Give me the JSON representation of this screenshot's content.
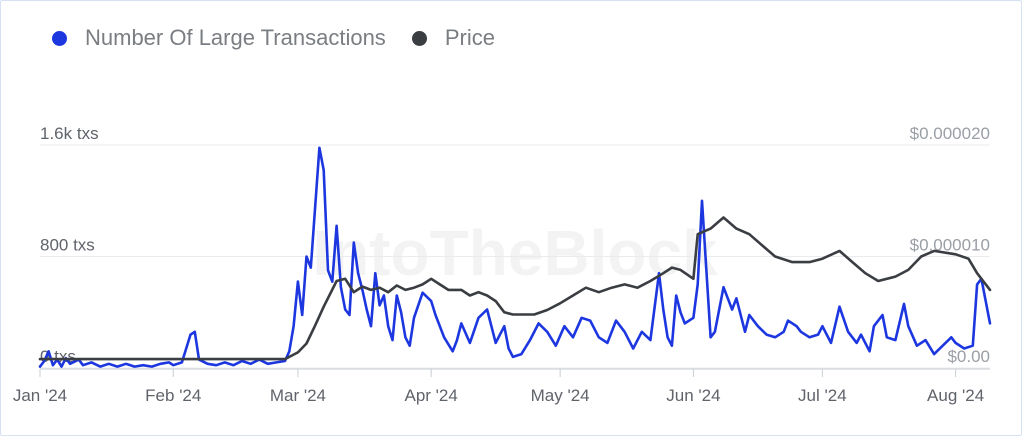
{
  "chart_data": {
    "type": "line",
    "title": "",
    "watermark": "IntoTheBlock",
    "legend": {
      "placement": "top-left",
      "items": [
        {
          "label": "Number Of Large Transactions",
          "color": "#1d37e0"
        },
        {
          "label": "Price",
          "color": "#3a3d42"
        }
      ]
    },
    "x_ticks": [
      "Jan '24",
      "Feb '24",
      "Mar '24",
      "Apr '24",
      "May '24",
      "Jun '24",
      "Jul '24",
      "Aug '24"
    ],
    "x_range": [
      "2024-01-01",
      "2024-08-09"
    ],
    "left_axis": {
      "ticks": [
        {
          "value": 0,
          "label": "0 txs"
        },
        {
          "value": 800,
          "label": "800 txs"
        },
        {
          "value": 1600,
          "label": "1.6k txs"
        }
      ],
      "range": [
        0,
        1600
      ]
    },
    "right_axis": {
      "ticks": [
        {
          "value": 0,
          "label": "$0.00"
        },
        {
          "value": 1e-05,
          "label": "$0.000010"
        },
        {
          "value": 2e-05,
          "label": "$0.000020"
        }
      ],
      "range": [
        0,
        2e-05
      ]
    },
    "grid": true,
    "series": [
      {
        "name": "Number Of Large Transactions",
        "axis": "left",
        "color": "#1d37e0",
        "points": [
          [
            "2024-01-01",
            10
          ],
          [
            "2024-01-02",
            50
          ],
          [
            "2024-01-03",
            120
          ],
          [
            "2024-01-04",
            20
          ],
          [
            "2024-01-05",
            60
          ],
          [
            "2024-01-06",
            10
          ],
          [
            "2024-01-07",
            70
          ],
          [
            "2024-01-08",
            30
          ],
          [
            "2024-01-10",
            60
          ],
          [
            "2024-01-11",
            20
          ],
          [
            "2024-01-13",
            40
          ],
          [
            "2024-01-15",
            10
          ],
          [
            "2024-01-17",
            30
          ],
          [
            "2024-01-19",
            10
          ],
          [
            "2024-01-21",
            30
          ],
          [
            "2024-01-23",
            10
          ],
          [
            "2024-01-25",
            20
          ],
          [
            "2024-01-27",
            10
          ],
          [
            "2024-01-29",
            30
          ],
          [
            "2024-01-31",
            40
          ],
          [
            "2024-02-01",
            20
          ],
          [
            "2024-02-03",
            40
          ],
          [
            "2024-02-05",
            240
          ],
          [
            "2024-02-06",
            260
          ],
          [
            "2024-02-07",
            60
          ],
          [
            "2024-02-09",
            30
          ],
          [
            "2024-02-11",
            20
          ],
          [
            "2024-02-13",
            40
          ],
          [
            "2024-02-15",
            20
          ],
          [
            "2024-02-17",
            50
          ],
          [
            "2024-02-19",
            30
          ],
          [
            "2024-02-21",
            60
          ],
          [
            "2024-02-23",
            30
          ],
          [
            "2024-02-25",
            40
          ],
          [
            "2024-02-27",
            50
          ],
          [
            "2024-02-28",
            120
          ],
          [
            "2024-02-29",
            300
          ],
          [
            "2024-03-01",
            620
          ],
          [
            "2024-03-02",
            380
          ],
          [
            "2024-03-03",
            800
          ],
          [
            "2024-03-04",
            720
          ],
          [
            "2024-03-06",
            1580
          ],
          [
            "2024-03-07",
            1420
          ],
          [
            "2024-03-08",
            700
          ],
          [
            "2024-03-09",
            620
          ],
          [
            "2024-03-10",
            1020
          ],
          [
            "2024-03-11",
            580
          ],
          [
            "2024-03-12",
            420
          ],
          [
            "2024-03-13",
            380
          ],
          [
            "2024-03-14",
            900
          ],
          [
            "2024-03-15",
            680
          ],
          [
            "2024-03-16",
            560
          ],
          [
            "2024-03-17",
            420
          ],
          [
            "2024-03-18",
            300
          ],
          [
            "2024-03-19",
            680
          ],
          [
            "2024-03-20",
            450
          ],
          [
            "2024-03-21",
            520
          ],
          [
            "2024-03-22",
            300
          ],
          [
            "2024-03-23",
            200
          ],
          [
            "2024-03-24",
            520
          ],
          [
            "2024-03-25",
            400
          ],
          [
            "2024-03-26",
            220
          ],
          [
            "2024-03-27",
            160
          ],
          [
            "2024-03-28",
            360
          ],
          [
            "2024-03-30",
            540
          ],
          [
            "2024-04-01",
            480
          ],
          [
            "2024-04-02",
            380
          ],
          [
            "2024-04-04",
            220
          ],
          [
            "2024-04-06",
            120
          ],
          [
            "2024-04-07",
            200
          ],
          [
            "2024-04-08",
            320
          ],
          [
            "2024-04-10",
            180
          ],
          [
            "2024-04-12",
            360
          ],
          [
            "2024-04-14",
            420
          ],
          [
            "2024-04-15",
            300
          ],
          [
            "2024-04-16",
            180
          ],
          [
            "2024-04-18",
            300
          ],
          [
            "2024-04-19",
            140
          ],
          [
            "2024-04-20",
            80
          ],
          [
            "2024-04-22",
            100
          ],
          [
            "2024-04-24",
            200
          ],
          [
            "2024-04-26",
            320
          ],
          [
            "2024-04-28",
            260
          ],
          [
            "2024-04-30",
            160
          ],
          [
            "2024-05-02",
            300
          ],
          [
            "2024-05-04",
            220
          ],
          [
            "2024-05-06",
            360
          ],
          [
            "2024-05-08",
            340
          ],
          [
            "2024-05-10",
            220
          ],
          [
            "2024-05-12",
            180
          ],
          [
            "2024-05-14",
            340
          ],
          [
            "2024-05-16",
            260
          ],
          [
            "2024-05-18",
            140
          ],
          [
            "2024-05-20",
            260
          ],
          [
            "2024-05-22",
            200
          ],
          [
            "2024-05-24",
            680
          ],
          [
            "2024-05-25",
            420
          ],
          [
            "2024-05-26",
            220
          ],
          [
            "2024-05-27",
            160
          ],
          [
            "2024-05-28",
            520
          ],
          [
            "2024-05-29",
            400
          ],
          [
            "2024-05-30",
            320
          ],
          [
            "2024-06-01",
            360
          ],
          [
            "2024-06-02",
            600
          ],
          [
            "2024-06-03",
            1200
          ],
          [
            "2024-06-05",
            220
          ],
          [
            "2024-06-06",
            260
          ],
          [
            "2024-06-07",
            420
          ],
          [
            "2024-06-08",
            580
          ],
          [
            "2024-06-10",
            420
          ],
          [
            "2024-06-11",
            500
          ],
          [
            "2024-06-13",
            260
          ],
          [
            "2024-06-14",
            380
          ],
          [
            "2024-06-16",
            300
          ],
          [
            "2024-06-18",
            240
          ],
          [
            "2024-06-20",
            220
          ],
          [
            "2024-06-22",
            260
          ],
          [
            "2024-06-23",
            340
          ],
          [
            "2024-06-25",
            300
          ],
          [
            "2024-06-26",
            260
          ],
          [
            "2024-06-28",
            220
          ],
          [
            "2024-06-30",
            240
          ],
          [
            "2024-07-01",
            300
          ],
          [
            "2024-07-03",
            180
          ],
          [
            "2024-07-05",
            440
          ],
          [
            "2024-07-07",
            260
          ],
          [
            "2024-07-09",
            180
          ],
          [
            "2024-07-10",
            240
          ],
          [
            "2024-07-12",
            120
          ],
          [
            "2024-07-13",
            300
          ],
          [
            "2024-07-15",
            380
          ],
          [
            "2024-07-16",
            220
          ],
          [
            "2024-07-18",
            200
          ],
          [
            "2024-07-20",
            460
          ],
          [
            "2024-07-21",
            300
          ],
          [
            "2024-07-23",
            160
          ],
          [
            "2024-07-25",
            200
          ],
          [
            "2024-07-27",
            100
          ],
          [
            "2024-07-29",
            160
          ],
          [
            "2024-07-31",
            220
          ],
          [
            "2024-08-01",
            180
          ],
          [
            "2024-08-03",
            140
          ],
          [
            "2024-08-05",
            160
          ],
          [
            "2024-08-06",
            600
          ],
          [
            "2024-08-07",
            640
          ],
          [
            "2024-08-09",
            320
          ]
        ]
      },
      {
        "name": "Price",
        "axis": "right",
        "color": "#3a3d42",
        "points": [
          [
            "2024-01-01",
            8e-07
          ],
          [
            "2024-02-27",
            8e-07
          ],
          [
            "2024-03-01",
            1.4e-06
          ],
          [
            "2024-03-03",
            2.2e-06
          ],
          [
            "2024-03-05",
            3.8e-06
          ],
          [
            "2024-03-07",
            5.5e-06
          ],
          [
            "2024-03-10",
            7.8e-06
          ],
          [
            "2024-03-12",
            8e-06
          ],
          [
            "2024-03-14",
            6.8e-06
          ],
          [
            "2024-03-16",
            7.3e-06
          ],
          [
            "2024-03-18",
            7e-06
          ],
          [
            "2024-03-20",
            7.2e-06
          ],
          [
            "2024-03-22",
            6.8e-06
          ],
          [
            "2024-03-24",
            7.4e-06
          ],
          [
            "2024-03-26",
            7e-06
          ],
          [
            "2024-03-28",
            7.2e-06
          ],
          [
            "2024-03-30",
            7.5e-06
          ],
          [
            "2024-04-01",
            8e-06
          ],
          [
            "2024-04-03",
            7.5e-06
          ],
          [
            "2024-04-05",
            7e-06
          ],
          [
            "2024-04-08",
            7e-06
          ],
          [
            "2024-04-10",
            6.5e-06
          ],
          [
            "2024-04-12",
            6.8e-06
          ],
          [
            "2024-04-14",
            6.5e-06
          ],
          [
            "2024-04-16",
            6e-06
          ],
          [
            "2024-04-18",
            5e-06
          ],
          [
            "2024-04-20",
            4.8e-06
          ],
          [
            "2024-04-25",
            4.8e-06
          ],
          [
            "2024-04-28",
            5.2e-06
          ],
          [
            "2024-05-01",
            5.8e-06
          ],
          [
            "2024-05-04",
            6.5e-06
          ],
          [
            "2024-05-07",
            7.2e-06
          ],
          [
            "2024-05-10",
            6.8e-06
          ],
          [
            "2024-05-13",
            7.2e-06
          ],
          [
            "2024-05-16",
            7.5e-06
          ],
          [
            "2024-05-19",
            7.2e-06
          ],
          [
            "2024-05-22",
            7.8e-06
          ],
          [
            "2024-05-25",
            8.5e-06
          ],
          [
            "2024-05-27",
            9e-06
          ],
          [
            "2024-05-29",
            8.8e-06
          ],
          [
            "2024-06-01",
            8e-06
          ],
          [
            "2024-06-02",
            1.2e-05
          ],
          [
            "2024-06-05",
            1.25e-05
          ],
          [
            "2024-06-08",
            1.35e-05
          ],
          [
            "2024-06-11",
            1.25e-05
          ],
          [
            "2024-06-14",
            1.2e-05
          ],
          [
            "2024-06-17",
            1.1e-05
          ],
          [
            "2024-06-20",
            1e-05
          ],
          [
            "2024-06-24",
            9.5e-06
          ],
          [
            "2024-06-28",
            9.5e-06
          ],
          [
            "2024-07-01",
            9.8e-06
          ],
          [
            "2024-07-05",
            1.05e-05
          ],
          [
            "2024-07-08",
            9.5e-06
          ],
          [
            "2024-07-11",
            8.5e-06
          ],
          [
            "2024-07-14",
            7.8e-06
          ],
          [
            "2024-07-18",
            8.2e-06
          ],
          [
            "2024-07-21",
            8.8e-06
          ],
          [
            "2024-07-24",
            1e-05
          ],
          [
            "2024-07-27",
            1.05e-05
          ],
          [
            "2024-08-01",
            1.02e-05
          ],
          [
            "2024-08-04",
            9.8e-06
          ],
          [
            "2024-08-06",
            8.5e-06
          ],
          [
            "2024-08-09",
            7e-06
          ]
        ]
      }
    ]
  }
}
